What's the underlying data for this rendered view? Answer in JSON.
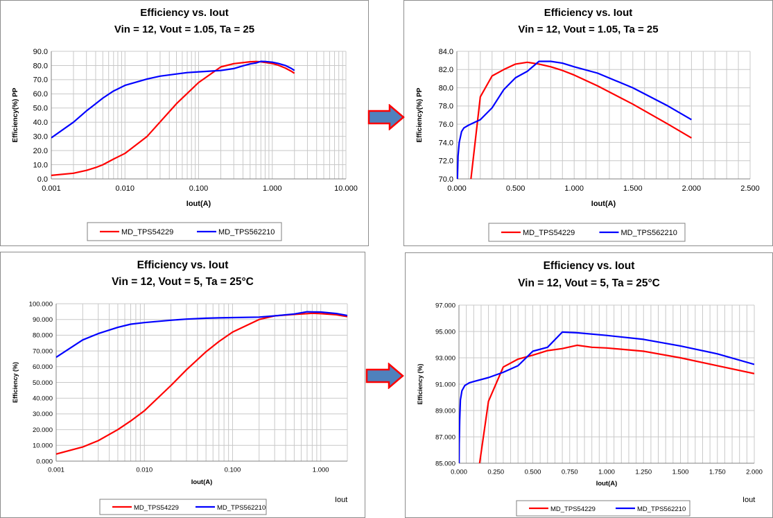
{
  "colors": {
    "series_a": "#ff0000",
    "series_b": "#0000ff",
    "arrow_fill": "#4f81bd",
    "arrow_stroke": "#ff0000",
    "grid": "#c8c8c8",
    "border": "#8c8c8c"
  },
  "chart_data": [
    {
      "type": "line",
      "title": "Efficiency vs. Iout",
      "subtitle": "Vin = 12, Vout = 1.05, Ta = 25",
      "xlabel": "Iout(A)",
      "ylabel": "Efficiency(%) PP",
      "x_scale": "log",
      "xlim": [
        0.001,
        10
      ],
      "ylim": [
        0,
        90
      ],
      "x_ticks": [
        0.001,
        0.01,
        0.1,
        1,
        10
      ],
      "x_tick_labels": [
        "0.001",
        "0.010",
        "0.100",
        "1.000",
        "10.000"
      ],
      "y_ticks": [
        0,
        10,
        20,
        30,
        40,
        50,
        60,
        70,
        80,
        90
      ],
      "y_tick_labels": [
        "0.0",
        "10.0",
        "20.0",
        "30.0",
        "40.0",
        "50.0",
        "60.0",
        "70.0",
        "80.0",
        "90.0"
      ],
      "grid": true,
      "legend": "bottom",
      "extra_label": "",
      "series": [
        {
          "name": "MD_TPS54229",
          "color": "#ff0000",
          "x": [
            0.001,
            0.002,
            0.003,
            0.004,
            0.005,
            0.007,
            0.008,
            0.01,
            0.02,
            0.05,
            0.1,
            0.2,
            0.3,
            0.5,
            0.6,
            0.7,
            1.0,
            1.2,
            1.5,
            1.8,
            2.0
          ],
          "y": [
            2.5,
            4.0,
            6.0,
            8.0,
            10.0,
            14.0,
            15.5,
            18.0,
            30.0,
            53.0,
            68.0,
            79.0,
            81.3,
            82.6,
            82.8,
            82.6,
            81.4,
            80.2,
            78.2,
            76.0,
            74.5
          ]
        },
        {
          "name": "MD_TPS562210",
          "color": "#0000ff",
          "x": [
            0.001,
            0.002,
            0.003,
            0.004,
            0.005,
            0.007,
            0.008,
            0.01,
            0.02,
            0.03,
            0.05,
            0.07,
            0.1,
            0.2,
            0.3,
            0.4,
            0.5,
            0.6,
            0.7,
            0.8,
            1.0,
            1.2,
            1.5,
            1.8,
            2.0
          ],
          "y": [
            29.0,
            40.0,
            48.0,
            53.0,
            57.0,
            62.0,
            63.5,
            66.0,
            70.5,
            72.5,
            74.0,
            75.0,
            75.5,
            76.5,
            77.8,
            79.8,
            81.1,
            81.8,
            82.9,
            82.8,
            82.3,
            81.5,
            80.0,
            78.0,
            76.5
          ]
        }
      ]
    },
    {
      "type": "line",
      "title": "Efficiency vs. Iout",
      "subtitle": "Vin = 12, Vout = 1.05, Ta = 25",
      "xlabel": "Iout(A)",
      "ylabel": "Efficiency(%) PP",
      "x_scale": "linear",
      "xlim": [
        0,
        2.5
      ],
      "ylim": [
        70,
        84
      ],
      "x_ticks": [
        0,
        0.5,
        1,
        1.5,
        2,
        2.5
      ],
      "x_tick_labels": [
        "0.000",
        "0.500",
        "1.000",
        "1.500",
        "2.000",
        "2.500"
      ],
      "y_ticks": [
        70,
        72,
        74,
        76,
        78,
        80,
        82,
        84
      ],
      "y_tick_labels": [
        "70.0",
        "72.0",
        "74.0",
        "76.0",
        "78.0",
        "80.0",
        "82.0",
        "84.0"
      ],
      "grid": true,
      "legend": "bottom",
      "extra_label": "",
      "series": [
        {
          "name": "MD_TPS54229",
          "color": "#ff0000",
          "x": [
            0.12,
            0.2,
            0.3,
            0.4,
            0.5,
            0.6,
            0.7,
            0.8,
            0.9,
            1.0,
            1.2,
            1.5,
            1.8,
            2.0
          ],
          "y": [
            70.0,
            79.0,
            81.3,
            82.0,
            82.6,
            82.8,
            82.6,
            82.3,
            81.9,
            81.4,
            80.2,
            78.2,
            76.0,
            74.5
          ]
        },
        {
          "name": "MD_TPS562210",
          "color": "#0000ff",
          "x": [
            0.005,
            0.01,
            0.02,
            0.04,
            0.06,
            0.1,
            0.15,
            0.2,
            0.3,
            0.4,
            0.5,
            0.6,
            0.7,
            0.8,
            0.9,
            1.0,
            1.2,
            1.5,
            1.8,
            2.0
          ],
          "y": [
            70.0,
            72.5,
            74.0,
            75.2,
            75.6,
            75.9,
            76.2,
            76.5,
            77.8,
            79.8,
            81.1,
            81.8,
            82.9,
            82.9,
            82.7,
            82.3,
            81.6,
            80.0,
            78.0,
            76.5
          ]
        }
      ]
    },
    {
      "type": "line",
      "title": "Efficiency  vs. Iout",
      "subtitle": "Vin = 12, Vout = 5, Ta = 25°C",
      "xlabel": "Iout(A)",
      "ylabel": "Efficiency (%)",
      "x_scale": "log",
      "xlim": [
        0.001,
        2
      ],
      "ylim": [
        0,
        100
      ],
      "x_ticks": [
        0.001,
        0.01,
        0.1,
        1
      ],
      "x_tick_labels": [
        "0.001",
        "0.010",
        "0.100",
        "1.000"
      ],
      "y_ticks": [
        0,
        10,
        20,
        30,
        40,
        50,
        60,
        70,
        80,
        90,
        100
      ],
      "y_tick_labels": [
        "0.000",
        "10.000",
        "20.000",
        "30.000",
        "40.000",
        "50.000",
        "60.000",
        "70.000",
        "80.000",
        "90.000",
        "100.000"
      ],
      "grid": true,
      "legend": "bottom",
      "extra_label": "Iout",
      "series": [
        {
          "name": "MD_TPS54229",
          "color": "#ff0000",
          "x": [
            0.001,
            0.002,
            0.003,
            0.005,
            0.007,
            0.01,
            0.02,
            0.03,
            0.05,
            0.07,
            0.1,
            0.2,
            0.3,
            0.5,
            0.7,
            0.8,
            1.0,
            1.5,
            2.0
          ],
          "y": [
            4.5,
            9.0,
            13.0,
            20.0,
            25.5,
            32.0,
            48.0,
            58.0,
            69.5,
            76.0,
            82.0,
            90.0,
            92.3,
            93.2,
            93.7,
            93.9,
            93.7,
            93.0,
            91.8
          ]
        },
        {
          "name": "MD_TPS562210",
          "color": "#0000ff",
          "x": [
            0.001,
            0.002,
            0.003,
            0.005,
            0.007,
            0.01,
            0.02,
            0.03,
            0.05,
            0.07,
            0.1,
            0.2,
            0.3,
            0.5,
            0.7,
            0.8,
            1.0,
            1.5,
            2.0
          ],
          "y": [
            66.0,
            77.0,
            81.0,
            85.0,
            87.0,
            88.0,
            89.5,
            90.2,
            90.8,
            91.0,
            91.2,
            91.5,
            92.3,
            93.5,
            94.9,
            94.8,
            94.7,
            93.8,
            92.5
          ]
        }
      ]
    },
    {
      "type": "line",
      "title": "Efficiency  vs. Iout",
      "subtitle": "Vin = 12, Vout = 5, Ta = 25°C",
      "xlabel": "Iout(A)",
      "ylabel": "Efficiency (%)",
      "x_scale": "linear",
      "xlim": [
        0,
        2
      ],
      "ylim": [
        85,
        97
      ],
      "x_ticks": [
        0,
        0.25,
        0.5,
        0.75,
        1,
        1.25,
        1.5,
        1.75,
        2
      ],
      "x_tick_labels": [
        "0.000",
        "0.250",
        "0.500",
        "0.750",
        "1.000",
        "1.250",
        "1.500",
        "1.750",
        "2.000"
      ],
      "y_ticks": [
        85,
        87,
        89,
        91,
        93,
        95,
        97
      ],
      "y_tick_labels": [
        "85.000",
        "87.000",
        "89.000",
        "91.000",
        "93.000",
        "95.000",
        "97.000"
      ],
      "grid": true,
      "legend": "bottom",
      "extra_label": "Iout",
      "series": [
        {
          "name": "MD_TPS54229",
          "color": "#ff0000",
          "x": [
            0.14,
            0.2,
            0.3,
            0.4,
            0.5,
            0.6,
            0.7,
            0.8,
            0.9,
            1.0,
            1.25,
            1.5,
            1.75,
            2.0
          ],
          "y": [
            85.0,
            89.7,
            92.3,
            92.9,
            93.2,
            93.55,
            93.7,
            93.95,
            93.8,
            93.75,
            93.5,
            93.0,
            92.4,
            91.8
          ]
        },
        {
          "name": "MD_TPS562210",
          "color": "#0000ff",
          "x": [
            0.001,
            0.002,
            0.005,
            0.01,
            0.02,
            0.04,
            0.07,
            0.1,
            0.2,
            0.3,
            0.4,
            0.5,
            0.6,
            0.7,
            0.8,
            1.0,
            1.25,
            1.5,
            1.75,
            2.0
          ],
          "y": [
            85.0,
            86.5,
            88.3,
            89.8,
            90.5,
            90.9,
            91.1,
            91.2,
            91.5,
            91.9,
            92.4,
            93.5,
            93.8,
            94.95,
            94.9,
            94.7,
            94.4,
            93.9,
            93.3,
            92.5
          ]
        }
      ]
    }
  ]
}
